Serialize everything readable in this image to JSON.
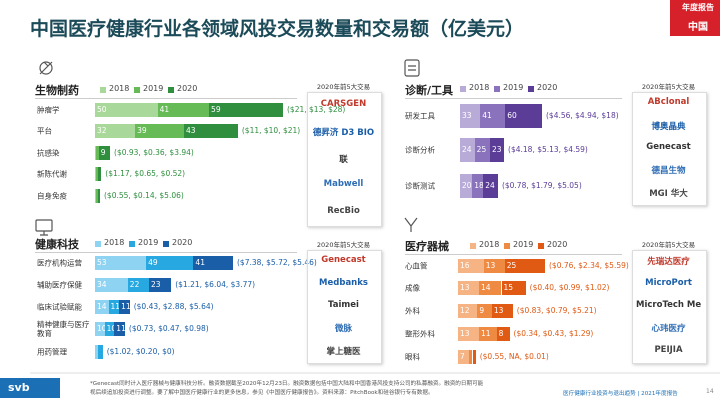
{
  "header": {
    "title": "中国医疗健康行业各领域风投交易数量和交易额（亿美元）",
    "badge_top": "年度报告",
    "badge": "中国"
  },
  "chart_data": [
    {
      "type": "bar",
      "orientation": "horizontal",
      "stacked": true,
      "title": "生物制药",
      "categories": [
        "肿瘤学",
        "平台",
        "抗感染",
        "新陈代谢",
        "自身免疫"
      ],
      "series": [
        {
          "name": "2018",
          "color": "#a9d99a",
          "values": [
            50,
            32,
            1,
            1,
            1
          ]
        },
        {
          "name": "2019",
          "color": "#66bb57",
          "values": [
            41,
            39,
            2,
            1,
            1
          ]
        },
        {
          "name": "2020",
          "color": "#2f8f3f",
          "values": [
            59,
            43,
            9,
            3,
            2
          ]
        }
      ],
      "amount_labels": [
        "($21, $13, $28)",
        "($11, $10, $21)",
        "($0.93, $0.36, $3.94)",
        "($1.17, $0.65, $0.52)",
        "($0.55, $0.14, $5.06)"
      ],
      "top_deals_title": "2020年前5大交易",
      "top_deals": [
        "CARSGEN",
        "德昇济 D3 BIO",
        "联",
        "Mabwell",
        "RecBio"
      ]
    },
    {
      "type": "bar",
      "orientation": "horizontal",
      "stacked": true,
      "title": "健康科技",
      "categories": [
        "医疗机构运营",
        "辅助医疗保健",
        "临床试验赋能",
        "精神健康与医疗教育",
        "用药管理"
      ],
      "series": [
        {
          "name": "2018",
          "color": "#8fd3f2",
          "values": [
            53,
            34,
            14,
            10,
            3
          ]
        },
        {
          "name": "2019",
          "color": "#27a8e0",
          "values": [
            49,
            22,
            11,
            10,
            5
          ]
        },
        {
          "name": "2020",
          "color": "#1a5ea8",
          "values": [
            41,
            23,
            11,
            11,
            0
          ]
        }
      ],
      "amount_labels": [
        "($7.38, $5.72, $5.46)",
        "($1.21, $6.04, $3.77)",
        "($0.43, $2.88, $5.64)",
        "($0.73, $0.47, $0.98)",
        "($1.02, $0.20, $0)"
      ],
      "top_deals_title": "2020年前5大交易",
      "top_deals": [
        "Genecast",
        "Medbanks",
        "Taimei",
        "微脉",
        "掌上糖医"
      ]
    },
    {
      "type": "bar",
      "orientation": "horizontal",
      "stacked": true,
      "title": "诊断/工具",
      "categories": [
        "研发工具",
        "诊断分析",
        "诊断测试"
      ],
      "series": [
        {
          "name": "2018",
          "color": "#b9abd8",
          "values": [
            33,
            24,
            20
          ]
        },
        {
          "name": "2019",
          "color": "#8a72bd",
          "values": [
            41,
            25,
            18
          ]
        },
        {
          "name": "2020",
          "color": "#5b3d98",
          "values": [
            60,
            23,
            24
          ]
        }
      ],
      "amount_labels": [
        "($4.56, $4.94, $18)",
        "($4.18, $5.13, $4.59)",
        "($0.78, $1.79, $5.05)"
      ],
      "top_deals_title": "2020年前5大交易",
      "top_deals": [
        "ABclonal",
        "博奥晶典",
        "Genecast",
        "德昌生物",
        "MGI 华大"
      ]
    },
    {
      "type": "bar",
      "orientation": "horizontal",
      "stacked": true,
      "title": "医疗器械",
      "categories": [
        "心血管",
        "成像",
        "外科",
        "整形外科",
        "眼科"
      ],
      "series": [
        {
          "name": "2018",
          "color": "#f6b383",
          "values": [
            16,
            13,
            12,
            13,
            7
          ]
        },
        {
          "name": "2019",
          "color": "#ee8a42",
          "values": [
            13,
            14,
            9,
            11,
            2
          ]
        },
        {
          "name": "2020",
          "color": "#e05a14",
          "values": [
            25,
            15,
            13,
            8,
            2
          ]
        }
      ],
      "amount_labels": [
        "($0.76, $2.34, $5.59)",
        "($0.40, $0.99, $1.02)",
        "($0.83, $0.79, $5.21)",
        "($0.34, $0.43, $1.29)",
        "($0.55, NA, $0.01)"
      ],
      "top_deals_title": "2020年前5大交易",
      "top_deals": [
        "先瑞达医疗",
        "MicroPort",
        "MicroTech Medical",
        "心玮医疗",
        "PEIJIA"
      ]
    }
  ],
  "footer": {
    "note_lines": [
      "*Genecast同时计入医疗器械与健康科技分析。融资数据截至2020年12月23日。融资数据包括中国大陆和中国香港风投支持公司的私募融资。融资的日期可能",
      "视后续追加投资进行调整。要了解中国医疗健康行业的更多信息，参见《中国医疗健康报告》。资料来源：PitchBook和硅谷银行专有数据。"
    ],
    "logo": "svb",
    "report": "医疗健康行业投资与退出趋势 | 2021年度报告",
    "page": "14"
  }
}
